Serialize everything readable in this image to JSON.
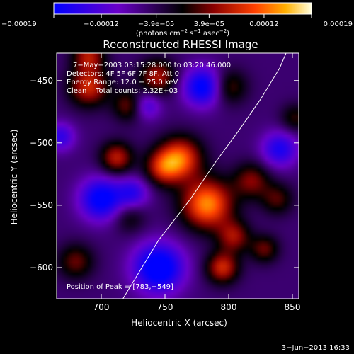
{
  "chart_data": {
    "type": "heatmap",
    "title": "Reconstructed RHESSI Image",
    "xlabel": "Heliocentric X (arcsec)",
    "ylabel": "Heliocentric Y (arcsec)",
    "xlim": [
      665,
      855
    ],
    "ylim": [
      -625,
      -428
    ],
    "x_ticks": [
      700,
      750,
      800,
      850
    ],
    "x_tick_labels": [
      "700",
      "750",
      "800",
      "850"
    ],
    "y_ticks": [
      -450,
      -500,
      -550,
      -600
    ],
    "y_tick_labels": [
      "−450",
      "−500",
      "−550",
      "−600"
    ],
    "colorbar": {
      "range": [
        -0.00019,
        0.00019
      ],
      "ticks": [
        -0.00019,
        -0.00012,
        -3.9e-05,
        3.9e-05,
        0.00012,
        0.00019
      ],
      "tick_labels": [
        "−0.00019",
        "−0.00012",
        "−3.9e−05",
        "3.9e−05",
        "0.00012",
        "0.00019"
      ],
      "unit_main": "(photons cm",
      "unit_sup1": "−2",
      "unit_mid": " s",
      "unit_sup2": "−1",
      "unit_mid2": " asec",
      "unit_sup3": "−2",
      "unit_end": ")"
    },
    "annotations": [
      "7−May−2003 03:15:28.000 to 03:20:46.000",
      "Detectors: 4F 5F 6F 7F 8F, Att 0",
      "Energy Range: 12.0 − 25.0 keV",
      "Clean    Total counts: 2.32E+03"
    ],
    "peak_label": "Position of Peak = [783,−549]",
    "peak": [
      783,
      -549
    ],
    "limb_curve": [
      [
        717,
        -625
      ],
      [
        745,
        -578
      ],
      [
        770,
        -545
      ],
      [
        790,
        -515
      ],
      [
        808,
        -490
      ],
      [
        825,
        -465
      ],
      [
        840,
        -440
      ],
      [
        845,
        -428
      ]
    ],
    "sources": [
      {
        "x": 783,
        "y": -549,
        "w": 1.0,
        "s": 14
      },
      {
        "x": 762,
        "y": -512,
        "w": 0.85,
        "s": 12
      },
      {
        "x": 748,
        "y": -520,
        "w": 0.6,
        "s": 10
      },
      {
        "x": 712,
        "y": -512,
        "w": 0.65,
        "s": 9
      },
      {
        "x": 690,
        "y": -455,
        "w": 0.7,
        "s": 11
      },
      {
        "x": 690,
        "y": -430,
        "w": 0.6,
        "s": 9
      },
      {
        "x": 744,
        "y": -447,
        "w": 0.6,
        "s": 10
      },
      {
        "x": 722,
        "y": -470,
        "w": 0.5,
        "s": 9
      },
      {
        "x": 800,
        "y": -455,
        "w": 0.45,
        "s": 10
      },
      {
        "x": 818,
        "y": -530,
        "w": 0.5,
        "s": 10
      },
      {
        "x": 804,
        "y": -575,
        "w": 0.55,
        "s": 9
      },
      {
        "x": 795,
        "y": -600,
        "w": 0.7,
        "s": 9
      },
      {
        "x": 828,
        "y": -585,
        "w": 0.45,
        "s": 8
      },
      {
        "x": 852,
        "y": -480,
        "w": 0.35,
        "s": 8
      },
      {
        "x": 838,
        "y": -545,
        "w": 0.4,
        "s": 9
      },
      {
        "x": 722,
        "y": -560,
        "w": 0.3,
        "s": 9
      },
      {
        "x": 680,
        "y": -595,
        "w": 0.45,
        "s": 10
      },
      {
        "x": 700,
        "y": -545,
        "w": -0.8,
        "s": 12
      },
      {
        "x": 745,
        "y": -600,
        "w": -0.9,
        "s": 14
      },
      {
        "x": 735,
        "y": -470,
        "w": -0.5,
        "s": 8
      },
      {
        "x": 780,
        "y": -455,
        "w": -0.8,
        "s": 11
      },
      {
        "x": 840,
        "y": -505,
        "w": -0.6,
        "s": 10
      },
      {
        "x": 725,
        "y": -540,
        "w": -0.5,
        "s": 9
      },
      {
        "x": 668,
        "y": -495,
        "w": -0.5,
        "s": 8
      }
    ]
  },
  "footer": {
    "timestamp": "3−Jun−2013 16:33"
  }
}
